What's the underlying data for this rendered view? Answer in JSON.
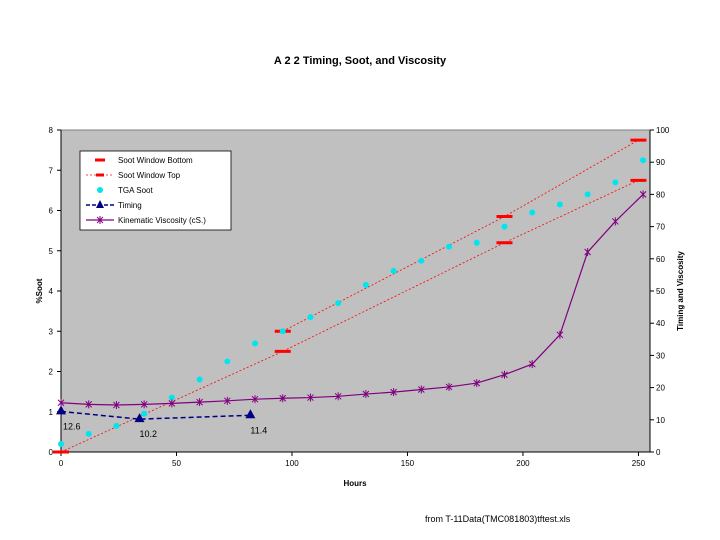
{
  "footer_note": "from T-11Data(TMC081803)tftest.xls",
  "chart_data": {
    "type": "scatter",
    "title": "A 2 2 Timing, Soot, and Viscosity",
    "xlabel": "Hours",
    "ylabel_left": "%Soot",
    "ylabel_right": "Timing and Viscosity",
    "xlim": [
      0,
      255
    ],
    "ylim_left": [
      0,
      8
    ],
    "ylim_right": [
      0,
      100
    ],
    "x_ticks": [
      0,
      50,
      100,
      150,
      200,
      250
    ],
    "y_left_ticks": [
      0,
      1,
      2,
      3,
      4,
      5,
      6,
      7,
      8
    ],
    "y_right_ticks": [
      0,
      10,
      20,
      30,
      40,
      50,
      60,
      70,
      80,
      90,
      100
    ],
    "grid": false,
    "legend_position": "top-left",
    "plot_background": "#c0c0c0",
    "series": [
      {
        "name": "Soot Window Bottom",
        "axis": "left",
        "style": "dash-marker",
        "color": "#ff0000",
        "x": [
          0,
          96,
          192,
          250
        ],
        "y": [
          0,
          2.5,
          5.2,
          6.75
        ]
      },
      {
        "name": "Soot Window Top",
        "axis": "left",
        "style": "dash-marker",
        "color": "#ff0000",
        "x": [
          96,
          192,
          250
        ],
        "y": [
          3,
          5.85,
          7.75
        ]
      },
      {
        "name": "TGA Soot",
        "axis": "left",
        "style": "circle",
        "color": "#00e5ee",
        "x": [
          0,
          12,
          24,
          36,
          48,
          60,
          72,
          84,
          96,
          108,
          120,
          132,
          144,
          156,
          168,
          180,
          192,
          204,
          216,
          228,
          240,
          252
        ],
        "y": [
          0.2,
          0.45,
          0.65,
          0.95,
          1.35,
          1.8,
          2.25,
          2.7,
          3.0,
          3.35,
          3.7,
          4.15,
          4.5,
          4.75,
          5.1,
          5.2,
          5.6,
          5.95,
          6.15,
          6.4,
          6.7,
          7.25
        ]
      },
      {
        "name": "Timing",
        "axis": "right",
        "style": "triangle-dashed",
        "color": "#000080",
        "x": [
          0,
          34,
          82
        ],
        "y": [
          12.6,
          10.2,
          11.4
        ]
      },
      {
        "name": "Kinematic Viscosity (cS.)",
        "axis": "right",
        "style": "star-line",
        "color": "#800080",
        "x": [
          0,
          12,
          24,
          36,
          48,
          60,
          72,
          84,
          96,
          108,
          120,
          132,
          144,
          156,
          168,
          180,
          192,
          204,
          216,
          228,
          240,
          252
        ],
        "y": [
          15.3,
          14.8,
          14.6,
          14.8,
          15.1,
          15.5,
          15.9,
          16.4,
          16.7,
          16.9,
          17.3,
          18.0,
          18.6,
          19.4,
          20.2,
          21.4,
          24.0,
          27.3,
          36.4,
          62.1,
          71.6,
          80.0
        ]
      }
    ],
    "annotations": [
      {
        "text": "12.6",
        "x": 0,
        "y": 12.6,
        "axis": "right"
      },
      {
        "text": "10.2",
        "x": 34,
        "y": 10.2,
        "axis": "right"
      },
      {
        "text": "11.4",
        "x": 82,
        "y": 11.4,
        "axis": "right"
      }
    ]
  }
}
